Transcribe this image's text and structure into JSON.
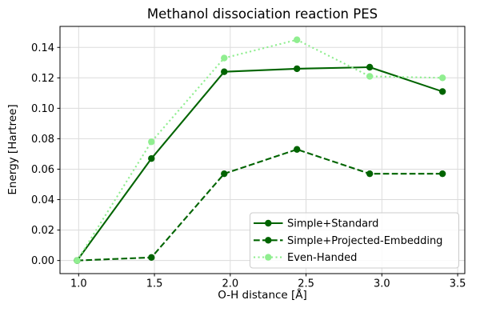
{
  "chart_data": {
    "type": "line",
    "title": "Methanol dissociation reaction PES",
    "xlabel": "O-H distance [Å]",
    "ylabel": "Energy [Hartree]",
    "x": [
      0.99,
      1.48,
      1.96,
      2.44,
      2.92,
      3.4
    ],
    "series": [
      {
        "name": "Simple+Standard",
        "values": [
          0.0,
          0.067,
          0.124,
          0.126,
          0.127,
          0.111
        ],
        "color": "#006400",
        "linestyle": "solid",
        "marker": "circle"
      },
      {
        "name": "Simple+Projected-Embedding",
        "values": [
          0.0,
          0.002,
          0.057,
          0.073,
          0.057,
          0.057
        ],
        "color": "#006400",
        "linestyle": "dashed",
        "marker": "circle"
      },
      {
        "name": "Even-Handed",
        "values": [
          0.0,
          0.078,
          0.133,
          0.145,
          0.121,
          0.12
        ],
        "color": "#90ee90",
        "linestyle": "dotted",
        "marker": "circle"
      }
    ],
    "xticks": [
      1.0,
      1.5,
      2.0,
      2.5,
      3.0,
      3.5
    ],
    "yticks": [
      0.0,
      0.02,
      0.04,
      0.06,
      0.08,
      0.1,
      0.12,
      0.14
    ],
    "xlim": [
      0.877,
      3.547
    ],
    "ylim": [
      -0.0086,
      0.1538
    ],
    "grid": true,
    "grid_color": "#dcdcdc",
    "spine_color": "#000000",
    "background": "#ffffff",
    "legend": {
      "position": "lower right",
      "entries": [
        "Simple+Standard",
        "Simple+Projected-Embedding",
        "Even-Handed"
      ]
    }
  }
}
